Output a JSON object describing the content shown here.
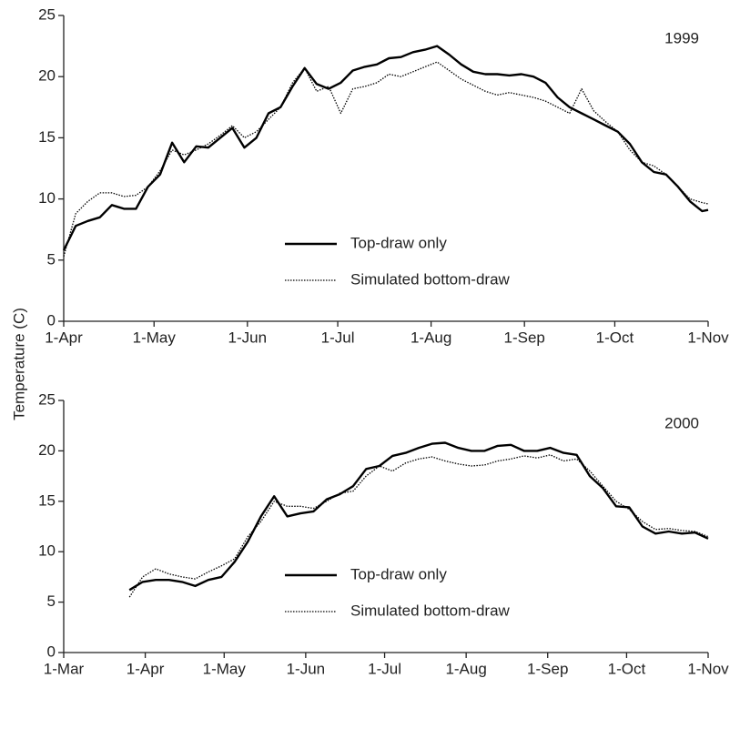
{
  "chart_data": [
    {
      "type": "line",
      "annotation": "1999",
      "ylabel": "Temperature (C)",
      "x": [
        0,
        4,
        8,
        12,
        16,
        20,
        24,
        28,
        32,
        36,
        40,
        44,
        48,
        52,
        56,
        60,
        64,
        68,
        72,
        76,
        80,
        84,
        88,
        92,
        96,
        100,
        104,
        108,
        112,
        116,
        120,
        124,
        128,
        132,
        136,
        140,
        144,
        148,
        152,
        156,
        160,
        164,
        168,
        172,
        176,
        180,
        184,
        188,
        192,
        196,
        200,
        204,
        208,
        212,
        214
      ],
      "series": [
        {
          "name": "Top-draw only",
          "color": "#000000",
          "style": "solid",
          "values": [
            5.8,
            7.8,
            8.2,
            8.5,
            9.5,
            9.2,
            9.2,
            11,
            12,
            14.6,
            13,
            14.3,
            14.2,
            15,
            15.8,
            14.2,
            15,
            17,
            17.5,
            19.2,
            20.7,
            19.4,
            19,
            19.5,
            20.5,
            20.8,
            21,
            21.5,
            21.6,
            22,
            22.2,
            22.5,
            21.8,
            21,
            20.4,
            20.2,
            20.2,
            20.1,
            20.2,
            20,
            19.5,
            18.3,
            17.5,
            17,
            16.5,
            16,
            15.5,
            14.5,
            13,
            12.2,
            12,
            11,
            9.8,
            9,
            9.1
          ]
        },
        {
          "name": "Simulated bottom-draw",
          "color": "#000000",
          "style": "dotted",
          "values": [
            5.3,
            8.8,
            9.8,
            10.5,
            10.5,
            10.2,
            10.3,
            11,
            12.3,
            14,
            13.6,
            14,
            14.5,
            15.2,
            16,
            15,
            15.5,
            16.5,
            17.5,
            19.5,
            20.7,
            18.8,
            19.2,
            17,
            19,
            19.2,
            19.5,
            20.2,
            20,
            20.4,
            20.8,
            21.2,
            20.5,
            19.8,
            19.3,
            18.8,
            18.5,
            18.7,
            18.5,
            18.3,
            18,
            17.5,
            17,
            19,
            17.2,
            16.3,
            15.5,
            14,
            13,
            12.7,
            12,
            11,
            10,
            9.7,
            9.6
          ]
        }
      ],
      "xlim": [
        0,
        214
      ],
      "xticks": [
        {
          "value": 0,
          "label": "1-Apr"
        },
        {
          "value": 30,
          "label": "1-May"
        },
        {
          "value": 61,
          "label": "1-Jun"
        },
        {
          "value": 91,
          "label": "1-Jul"
        },
        {
          "value": 122,
          "label": "1-Aug"
        },
        {
          "value": 153,
          "label": "1-Sep"
        },
        {
          "value": 183,
          "label": "1-Oct"
        },
        {
          "value": 214,
          "label": "1-Nov"
        }
      ],
      "ylim": [
        0,
        25
      ],
      "yticks": [
        0,
        5,
        10,
        15,
        20,
        25
      ]
    },
    {
      "type": "line",
      "annotation": "2000",
      "x": [
        25,
        30,
        35,
        40,
        45,
        50,
        55,
        60,
        65,
        70,
        75,
        80,
        85,
        90,
        95,
        100,
        105,
        110,
        115,
        120,
        125,
        130,
        135,
        140,
        145,
        150,
        155,
        160,
        165,
        170,
        175,
        180,
        185,
        190,
        195,
        200,
        205,
        210,
        215,
        220,
        225,
        230,
        235,
        240,
        245
      ],
      "series": [
        {
          "name": "Top-draw only",
          "color": "#000000",
          "style": "solid",
          "values": [
            6.2,
            7,
            7.2,
            7.2,
            7,
            6.6,
            7.2,
            7.5,
            9,
            11,
            13.5,
            15.5,
            13.5,
            13.8,
            14,
            15.2,
            15.7,
            16.5,
            18.2,
            18.5,
            19.5,
            19.8,
            20.3,
            20.7,
            20.8,
            20.3,
            20,
            20,
            20.5,
            20.6,
            20,
            20,
            20.3,
            19.8,
            19.6,
            17.5,
            16.3,
            14.5,
            14.4,
            12.5,
            11.8,
            12,
            11.8,
            11.9,
            11.3
          ]
        },
        {
          "name": "Simulated bottom-draw",
          "color": "#000000",
          "style": "dotted",
          "values": [
            5.5,
            7.5,
            8.3,
            7.8,
            7.5,
            7.3,
            8,
            8.6,
            9.3,
            11.5,
            13,
            15,
            14.5,
            14.5,
            14.3,
            15,
            15.8,
            16,
            17.5,
            18.5,
            18,
            18.8,
            19.2,
            19.4,
            19,
            18.7,
            18.5,
            18.6,
            19,
            19.2,
            19.5,
            19.3,
            19.6,
            19,
            19.2,
            18,
            16.5,
            15,
            14.2,
            13,
            12.2,
            12.3,
            12.1,
            12,
            11.5
          ]
        }
      ],
      "xlim": [
        0,
        245
      ],
      "xticks": [
        {
          "value": 0,
          "label": "1-Mar"
        },
        {
          "value": 31,
          "label": "1-Apr"
        },
        {
          "value": 61,
          "label": "1-May"
        },
        {
          "value": 92,
          "label": "1-Jun"
        },
        {
          "value": 122,
          "label": "1-Jul"
        },
        {
          "value": 153,
          "label": "1-Aug"
        },
        {
          "value": 184,
          "label": "1-Sep"
        },
        {
          "value": 214,
          "label": "1-Oct"
        },
        {
          "value": 245,
          "label": "1-Nov"
        }
      ],
      "ylim": [
        0,
        25
      ],
      "yticks": [
        0,
        5,
        10,
        15,
        20,
        25
      ]
    }
  ]
}
